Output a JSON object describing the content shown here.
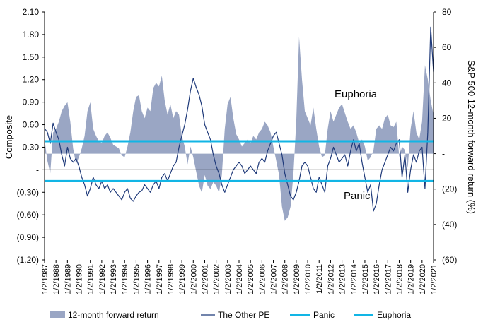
{
  "chart_data": {
    "type": "bar",
    "title": "",
    "left_axis": {
      "label": "Composite",
      "ticks": [
        "2.10",
        "1.80",
        "1.50",
        "1.20",
        "0.90",
        "0.60",
        "0.30",
        "-",
        "(0.30)",
        "(0.60)",
        "(0.90)",
        "(1.20)"
      ],
      "range": [
        -1.2,
        2.1
      ]
    },
    "right_axis": {
      "label": "S&P 500 12-month forward return (%)",
      "ticks": [
        "80",
        "60",
        "40",
        "20",
        "-",
        "(20)",
        "(40)",
        "(60)"
      ],
      "range": [
        -60,
        80
      ]
    },
    "x_labels": [
      "1/2/1987",
      "1/2/1988",
      "1/2/1989",
      "1/2/1990",
      "1/2/1991",
      "1/2/1992",
      "1/2/1993",
      "1/2/1994",
      "1/2/1995",
      "1/2/1996",
      "1/2/1997",
      "1/2/1998",
      "1/2/1999",
      "1/2/2000",
      "1/2/2001",
      "1/2/2002",
      "1/2/2003",
      "1/2/2004",
      "1/2/2005",
      "1/2/2006",
      "1/2/2007",
      "1/2/2008",
      "1/2/2009",
      "1/2/2010",
      "1/2/2011",
      "1/2/2012",
      "1/2/2013",
      "1/2/2014",
      "1/2/2015",
      "1/2/2016",
      "1/2/2017",
      "1/2/2018",
      "1/2/2019",
      "1/2/2020",
      "1/2/2021"
    ],
    "x_start_year": 1987,
    "x_end_year": 2021.0,
    "thresholds": {
      "euphoria": 0.38,
      "panic": -0.15
    },
    "annotations": {
      "euphoria": "Euphoria",
      "panic": "Panic"
    },
    "series": [
      {
        "name": "12-month forward return",
        "axis": "right",
        "kind": "area",
        "color": "#9aa6c4",
        "points": [
          [
            1987.0,
            8
          ],
          [
            1987.25,
            -4
          ],
          [
            1987.5,
            -11
          ],
          [
            1987.75,
            12
          ],
          [
            1988.0,
            14
          ],
          [
            1988.25,
            18
          ],
          [
            1988.5,
            24
          ],
          [
            1988.75,
            27
          ],
          [
            1989.0,
            29
          ],
          [
            1989.25,
            18
          ],
          [
            1989.5,
            3
          ],
          [
            1989.75,
            -6
          ],
          [
            1990.0,
            -2
          ],
          [
            1990.25,
            3
          ],
          [
            1990.5,
            10
          ],
          [
            1990.75,
            24
          ],
          [
            1991.0,
            29
          ],
          [
            1991.25,
            14
          ],
          [
            1991.5,
            10
          ],
          [
            1991.75,
            7
          ],
          [
            1992.0,
            6
          ],
          [
            1992.25,
            10
          ],
          [
            1992.5,
            12
          ],
          [
            1992.75,
            9
          ],
          [
            1993.0,
            5
          ],
          [
            1993.25,
            4
          ],
          [
            1993.5,
            3
          ],
          [
            1993.75,
            -1
          ],
          [
            1994.0,
            -2
          ],
          [
            1994.25,
            4
          ],
          [
            1994.5,
            12
          ],
          [
            1994.75,
            24
          ],
          [
            1995.0,
            32
          ],
          [
            1995.25,
            33
          ],
          [
            1995.5,
            24
          ],
          [
            1995.75,
            20
          ],
          [
            1996.0,
            26
          ],
          [
            1996.25,
            24
          ],
          [
            1996.5,
            37
          ],
          [
            1996.75,
            40
          ],
          [
            1997.0,
            38
          ],
          [
            1997.25,
            44
          ],
          [
            1997.5,
            30
          ],
          [
            1997.75,
            22
          ],
          [
            1998.0,
            28
          ],
          [
            1998.25,
            20
          ],
          [
            1998.5,
            24
          ],
          [
            1998.75,
            22
          ],
          [
            1999.0,
            10
          ],
          [
            1999.25,
            4
          ],
          [
            1999.5,
            -6
          ],
          [
            1999.75,
            4
          ],
          [
            2000.0,
            -2
          ],
          [
            2000.25,
            -10
          ],
          [
            2000.5,
            -18
          ],
          [
            2000.75,
            -22
          ],
          [
            2001.0,
            -12
          ],
          [
            2001.25,
            -18
          ],
          [
            2001.5,
            -20
          ],
          [
            2001.75,
            -16
          ],
          [
            2002.0,
            -18
          ],
          [
            2002.25,
            -22
          ],
          [
            2002.5,
            -12
          ],
          [
            2002.75,
            14
          ],
          [
            2003.0,
            28
          ],
          [
            2003.25,
            32
          ],
          [
            2003.5,
            20
          ],
          [
            2003.75,
            11
          ],
          [
            2004.0,
            8
          ],
          [
            2004.25,
            4
          ],
          [
            2004.5,
            6
          ],
          [
            2004.75,
            8
          ],
          [
            2005.0,
            6
          ],
          [
            2005.25,
            10
          ],
          [
            2005.5,
            8
          ],
          [
            2005.75,
            12
          ],
          [
            2006.0,
            14
          ],
          [
            2006.25,
            18
          ],
          [
            2006.5,
            16
          ],
          [
            2006.75,
            12
          ],
          [
            2007.0,
            4
          ],
          [
            2007.25,
            -4
          ],
          [
            2007.5,
            -12
          ],
          [
            2007.75,
            -30
          ],
          [
            2008.0,
            -38
          ],
          [
            2008.25,
            -36
          ],
          [
            2008.5,
            -30
          ],
          [
            2008.75,
            -12
          ],
          [
            2009.0,
            18
          ],
          [
            2009.25,
            66
          ],
          [
            2009.5,
            42
          ],
          [
            2009.75,
            24
          ],
          [
            2010.0,
            20
          ],
          [
            2010.25,
            16
          ],
          [
            2010.5,
            26
          ],
          [
            2010.75,
            14
          ],
          [
            2011.0,
            4
          ],
          [
            2011.25,
            -2
          ],
          [
            2011.5,
            -1
          ],
          [
            2011.75,
            14
          ],
          [
            2012.0,
            24
          ],
          [
            2012.25,
            18
          ],
          [
            2012.5,
            22
          ],
          [
            2012.75,
            26
          ],
          [
            2013.0,
            28
          ],
          [
            2013.25,
            23
          ],
          [
            2013.5,
            18
          ],
          [
            2013.75,
            14
          ],
          [
            2014.0,
            16
          ],
          [
            2014.25,
            12
          ],
          [
            2014.5,
            6
          ],
          [
            2014.75,
            8
          ],
          [
            2015.0,
            4
          ],
          [
            2015.25,
            -4
          ],
          [
            2015.5,
            -2
          ],
          [
            2015.75,
            2
          ],
          [
            2016.0,
            14
          ],
          [
            2016.25,
            16
          ],
          [
            2016.5,
            14
          ],
          [
            2016.75,
            20
          ],
          [
            2017.0,
            22
          ],
          [
            2017.25,
            16
          ],
          [
            2017.5,
            15
          ],
          [
            2017.75,
            18
          ],
          [
            2018.0,
            -2
          ],
          [
            2018.25,
            4
          ],
          [
            2018.5,
            2
          ],
          [
            2018.75,
            -8
          ],
          [
            2019.0,
            14
          ],
          [
            2019.25,
            24
          ],
          [
            2019.5,
            12
          ],
          [
            2019.75,
            8
          ],
          [
            2020.0,
            18
          ],
          [
            2020.25,
            50
          ],
          [
            2020.5,
            42
          ],
          [
            2020.75,
            30
          ],
          [
            2021.0,
            22
          ]
        ]
      },
      {
        "name": "The Other PE",
        "axis": "left",
        "kind": "line",
        "color": "#1f3a7a",
        "points": [
          [
            1987.0,
            0.55
          ],
          [
            1987.25,
            0.5
          ],
          [
            1987.5,
            0.35
          ],
          [
            1987.75,
            0.62
          ],
          [
            1988.0,
            0.5
          ],
          [
            1988.25,
            0.4
          ],
          [
            1988.5,
            0.2
          ],
          [
            1988.75,
            0.05
          ],
          [
            1989.0,
            0.3
          ],
          [
            1989.25,
            0.15
          ],
          [
            1989.5,
            0.1
          ],
          [
            1989.75,
            0.15
          ],
          [
            1990.0,
            0.05
          ],
          [
            1990.25,
            -0.1
          ],
          [
            1990.5,
            -0.2
          ],
          [
            1990.75,
            -0.35
          ],
          [
            1991.0,
            -0.25
          ],
          [
            1991.25,
            -0.1
          ],
          [
            1991.5,
            -0.2
          ],
          [
            1991.75,
            -0.25
          ],
          [
            1992.0,
            -0.15
          ],
          [
            1992.25,
            -0.25
          ],
          [
            1992.5,
            -0.2
          ],
          [
            1992.75,
            -0.3
          ],
          [
            1993.0,
            -0.25
          ],
          [
            1993.25,
            -0.3
          ],
          [
            1993.5,
            -0.35
          ],
          [
            1993.75,
            -0.4
          ],
          [
            1994.0,
            -0.3
          ],
          [
            1994.25,
            -0.25
          ],
          [
            1994.5,
            -0.38
          ],
          [
            1994.75,
            -0.42
          ],
          [
            1995.0,
            -0.35
          ],
          [
            1995.25,
            -0.3
          ],
          [
            1995.5,
            -0.28
          ],
          [
            1995.75,
            -0.2
          ],
          [
            1996.0,
            -0.25
          ],
          [
            1996.25,
            -0.3
          ],
          [
            1996.5,
            -0.2
          ],
          [
            1996.75,
            -0.15
          ],
          [
            1997.0,
            -0.25
          ],
          [
            1997.25,
            -0.1
          ],
          [
            1997.5,
            -0.05
          ],
          [
            1997.75,
            -0.15
          ],
          [
            1998.0,
            -0.05
          ],
          [
            1998.25,
            0.05
          ],
          [
            1998.5,
            0.1
          ],
          [
            1998.75,
            0.3
          ],
          [
            1999.0,
            0.45
          ],
          [
            1999.25,
            0.6
          ],
          [
            1999.5,
            0.8
          ],
          [
            1999.75,
            1.05
          ],
          [
            2000.0,
            1.22
          ],
          [
            2000.25,
            1.1
          ],
          [
            2000.5,
            1.0
          ],
          [
            2000.75,
            0.85
          ],
          [
            2001.0,
            0.6
          ],
          [
            2001.25,
            0.5
          ],
          [
            2001.5,
            0.4
          ],
          [
            2001.75,
            0.2
          ],
          [
            2002.0,
            0.05
          ],
          [
            2002.25,
            -0.05
          ],
          [
            2002.5,
            -0.2
          ],
          [
            2002.75,
            -0.3
          ],
          [
            2003.0,
            -0.2
          ],
          [
            2003.25,
            -0.1
          ],
          [
            2003.5,
            0.0
          ],
          [
            2003.75,
            0.05
          ],
          [
            2004.0,
            0.1
          ],
          [
            2004.25,
            0.05
          ],
          [
            2004.5,
            -0.05
          ],
          [
            2004.75,
            0.0
          ],
          [
            2005.0,
            0.05
          ],
          [
            2005.25,
            0.0
          ],
          [
            2005.5,
            -0.05
          ],
          [
            2005.75,
            0.1
          ],
          [
            2006.0,
            0.15
          ],
          [
            2006.25,
            0.1
          ],
          [
            2006.5,
            0.25
          ],
          [
            2006.75,
            0.35
          ],
          [
            2007.0,
            0.45
          ],
          [
            2007.25,
            0.5
          ],
          [
            2007.5,
            0.35
          ],
          [
            2007.75,
            0.2
          ],
          [
            2008.0,
            -0.05
          ],
          [
            2008.25,
            -0.2
          ],
          [
            2008.5,
            -0.35
          ],
          [
            2008.75,
            -0.4
          ],
          [
            2009.0,
            -0.3
          ],
          [
            2009.25,
            -0.15
          ],
          [
            2009.5,
            0.05
          ],
          [
            2009.75,
            0.1
          ],
          [
            2010.0,
            0.05
          ],
          [
            2010.25,
            -0.1
          ],
          [
            2010.5,
            -0.25
          ],
          [
            2010.75,
            -0.3
          ],
          [
            2011.0,
            -0.1
          ],
          [
            2011.25,
            -0.2
          ],
          [
            2011.5,
            -0.3
          ],
          [
            2011.75,
            0.05
          ],
          [
            2012.0,
            0.15
          ],
          [
            2012.25,
            0.3
          ],
          [
            2012.5,
            0.2
          ],
          [
            2012.75,
            0.1
          ],
          [
            2013.0,
            0.15
          ],
          [
            2013.25,
            0.2
          ],
          [
            2013.5,
            0.05
          ],
          [
            2013.75,
            0.25
          ],
          [
            2014.0,
            0.4
          ],
          [
            2014.25,
            0.25
          ],
          [
            2014.5,
            0.35
          ],
          [
            2014.75,
            0.1
          ],
          [
            2015.0,
            -0.1
          ],
          [
            2015.25,
            -0.3
          ],
          [
            2015.5,
            -0.2
          ],
          [
            2015.75,
            -0.55
          ],
          [
            2016.0,
            -0.45
          ],
          [
            2016.25,
            -0.2
          ],
          [
            2016.5,
            0.0
          ],
          [
            2016.75,
            0.1
          ],
          [
            2017.0,
            0.2
          ],
          [
            2017.25,
            0.3
          ],
          [
            2017.5,
            0.25
          ],
          [
            2017.75,
            0.35
          ],
          [
            2018.0,
            0.4
          ],
          [
            2018.25,
            -0.1
          ],
          [
            2018.5,
            0.2
          ],
          [
            2018.75,
            -0.3
          ],
          [
            2019.0,
            0.0
          ],
          [
            2019.25,
            0.2
          ],
          [
            2019.5,
            0.1
          ],
          [
            2019.75,
            0.25
          ],
          [
            2020.0,
            0.3
          ],
          [
            2020.25,
            -0.25
          ],
          [
            2020.5,
            0.5
          ],
          [
            2020.75,
            1.9
          ],
          [
            2021.0,
            1.3
          ]
        ]
      },
      {
        "name": "Panic",
        "kind": "hline",
        "color": "#12b5e5"
      },
      {
        "name": "Euphoria",
        "kind": "hline",
        "color": "#12b5e5"
      }
    ],
    "legend": {
      "position": "bottom",
      "items": [
        "12-month forward return",
        "The Other PE",
        "Panic",
        "Euphoria"
      ]
    }
  }
}
